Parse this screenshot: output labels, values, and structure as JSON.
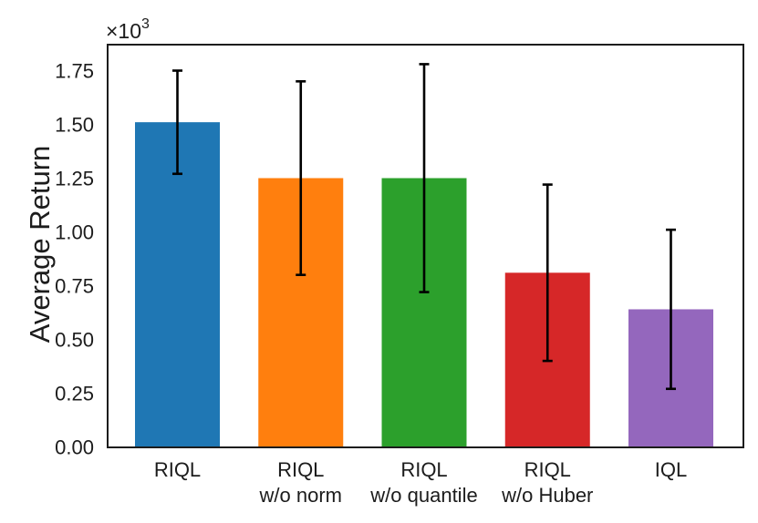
{
  "chart_data": {
    "type": "bar",
    "title": "",
    "xlabel": "",
    "ylabel": "Average Return",
    "y_offset_text": {
      "base": "×10",
      "exponent": "3"
    },
    "categories": [
      "RIQL",
      "RIQL\nw/o norm",
      "RIQL\nw/o quantile",
      "RIQL\nw/o Huber",
      "IQL"
    ],
    "values_x1000": [
      1.51,
      1.25,
      1.25,
      0.81,
      0.64
    ],
    "errors_x1000": [
      0.24,
      0.45,
      0.53,
      0.41,
      0.37
    ],
    "bar_colors": [
      "#1f77b4",
      "#ff7f0e",
      "#2ca02c",
      "#d62728",
      "#9467bd"
    ],
    "error_bar_color": "#000000",
    "axis_color": "#1c1c1c",
    "ytick_labels": [
      "0.00",
      "0.25",
      "0.50",
      "0.75",
      "1.00",
      "1.25",
      "1.50",
      "1.75"
    ],
    "ytick_values_x1000": [
      0.0,
      0.25,
      0.5,
      0.75,
      1.0,
      1.25,
      1.5,
      1.75
    ],
    "ylim_x1000": [
      0,
      1.872
    ],
    "grid": false,
    "legend": "none"
  }
}
